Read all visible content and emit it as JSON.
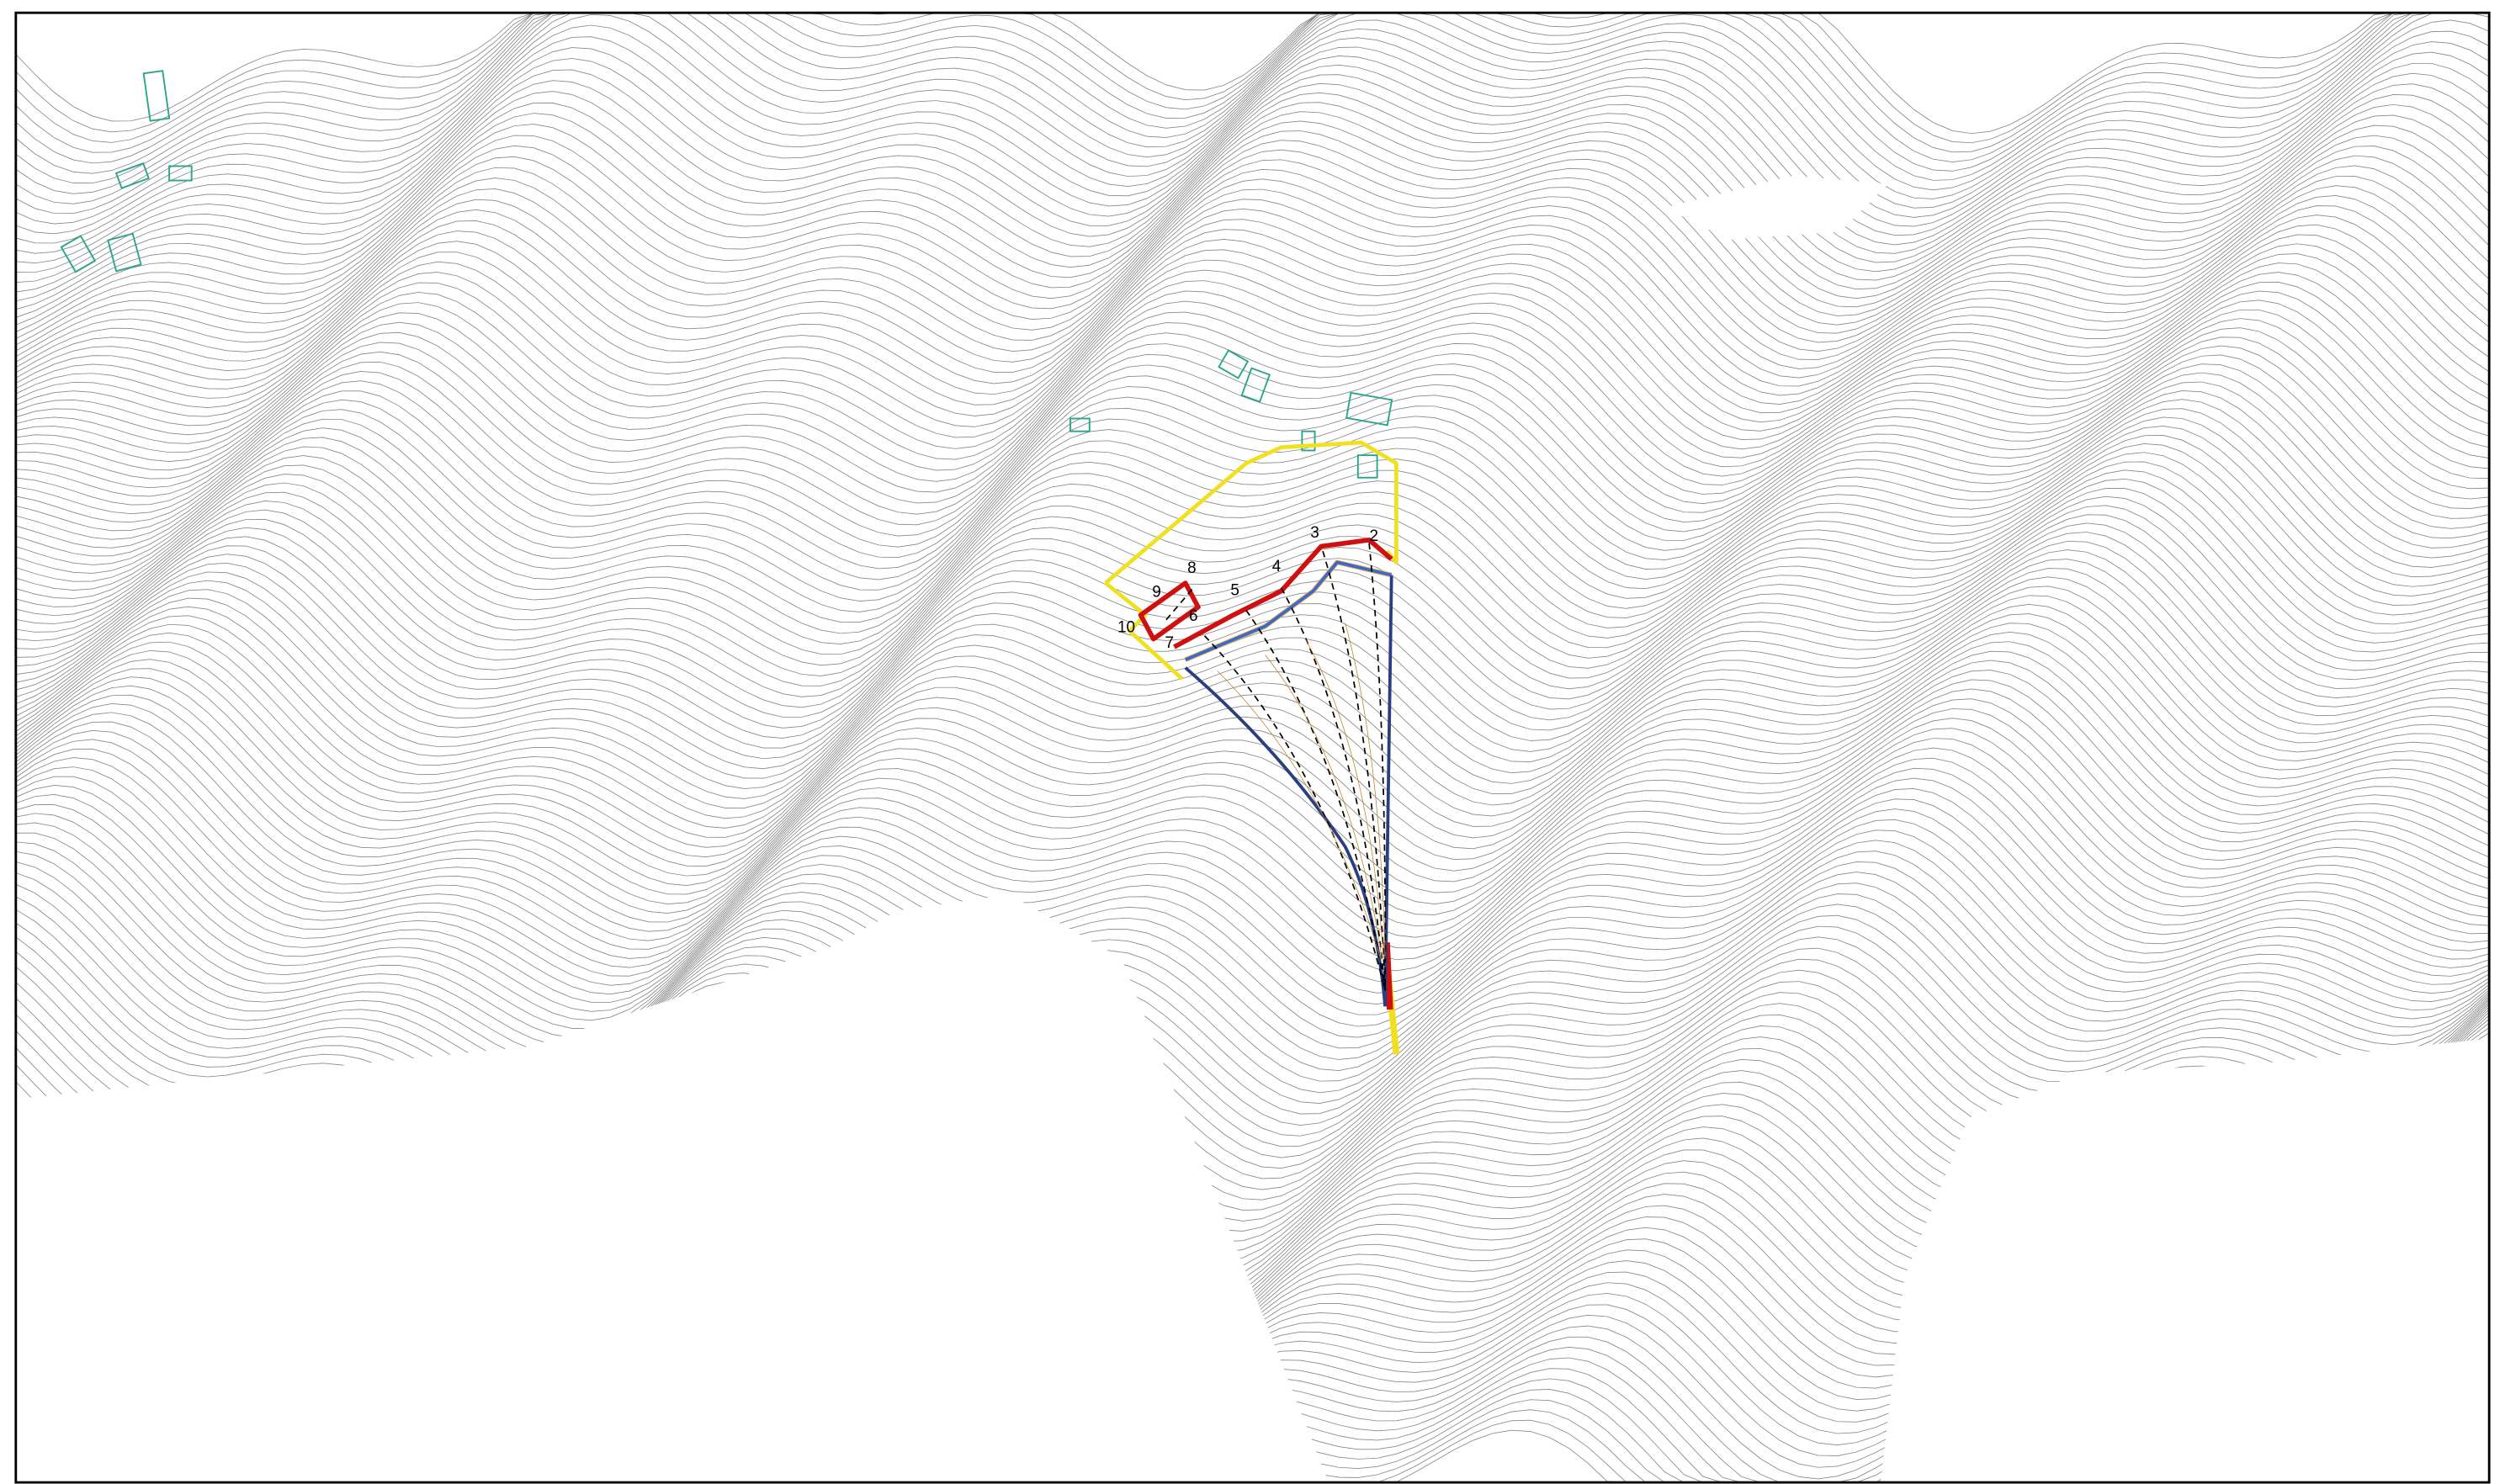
{
  "map": {
    "section_labels": [
      "2",
      "3",
      "4",
      "5",
      "6",
      "7",
      "8",
      "9",
      "10"
    ]
  }
}
